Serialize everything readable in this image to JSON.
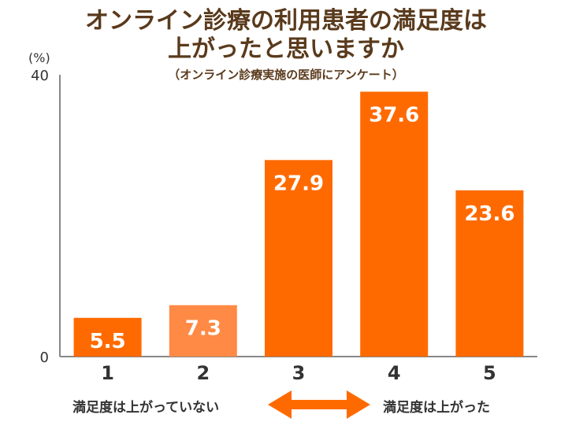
{
  "title_line1": "オンライン診療の利用患者の満足度は",
  "title_line2": "上がったと思いますか",
  "subtitle": "（オンライン診療実施の医師にアンケート）",
  "unit_label": "(%)",
  "colors": {
    "bar": "#ff6a00",
    "bar_highlight": "#ff8a45",
    "title": "#5a3a1c",
    "axis": "#888888"
  },
  "annotations": {
    "left": "満足度は上がっていない",
    "right": "満足度は上がった"
  },
  "chart_data": {
    "type": "bar",
    "title": "オンライン診療の利用患者の満足度は上がったと思いますか",
    "subtitle": "（オンライン診療実施の医師にアンケート）",
    "ylabel": "(%)",
    "ylim": [
      0,
      40
    ],
    "yticks": [
      "0",
      "40"
    ],
    "categories": [
      "1",
      "2",
      "3",
      "4",
      "5"
    ],
    "values": [
      5.5,
      7.3,
      27.9,
      37.6,
      23.6
    ],
    "value_labels": [
      "5.5",
      "7.3",
      "27.9",
      "37.6",
      "23.6"
    ],
    "grid": false
  }
}
